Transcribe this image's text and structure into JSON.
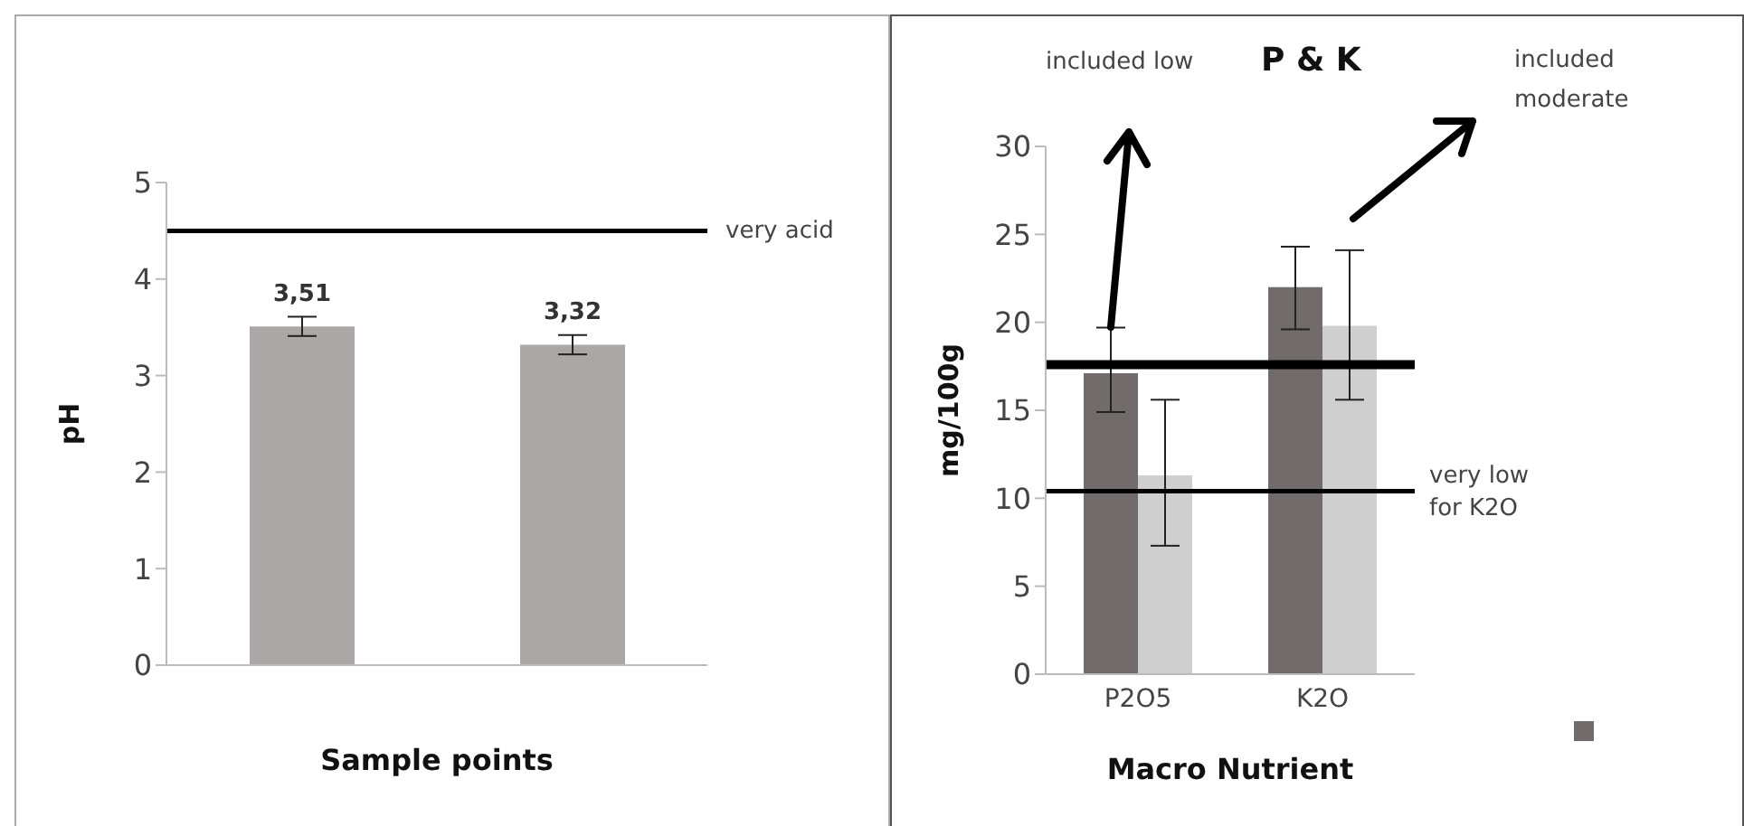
{
  "chart_data": [
    {
      "type": "bar",
      "ylabel": "pH",
      "xlabel": "Sample points",
      "categories": [
        null,
        null
      ],
      "series": [
        {
          "color": "#aba7a6",
          "values": [
            3.51,
            3.32
          ],
          "errors": [
            0.1,
            0.1
          ],
          "value_labels": [
            "3,51",
            "3,32"
          ]
        }
      ],
      "ylim": [
        0,
        5
      ],
      "yticks": [
        0,
        1,
        2,
        3,
        4,
        5
      ],
      "ref_lines": [
        {
          "axis": "y",
          "value": 4.5,
          "label": "very acid",
          "color": "#000000"
        }
      ]
    },
    {
      "type": "bar",
      "title": "P & K",
      "ylabel": "mg/100g",
      "xlabel": "Macro Nutrient",
      "categories": [
        "P2O5",
        "K2O"
      ],
      "series": [
        {
          "color": "#716c6b",
          "values": [
            17.1,
            22
          ],
          "errors": [
            [
              14.9,
              19.7
            ],
            [
              19.6,
              24.3
            ]
          ]
        },
        {
          "color": "#d0cfcf",
          "values": [
            11.3,
            19.8
          ],
          "errors": [
            [
              7.3,
              15.6
            ],
            [
              15.6,
              24.1
            ]
          ]
        }
      ],
      "ylim": [
        0,
        30
      ],
      "yticks": [
        0,
        5,
        10,
        15,
        20,
        25,
        30
      ],
      "ref_lines": [
        {
          "axis": "y",
          "value": 17.6,
          "label": null,
          "color": "#000000"
        },
        {
          "axis": "y",
          "value": 10.4,
          "label": "very low for K2O",
          "color": "#000000"
        }
      ],
      "annotations": [
        "included low",
        "included moderate"
      ]
    }
  ]
}
